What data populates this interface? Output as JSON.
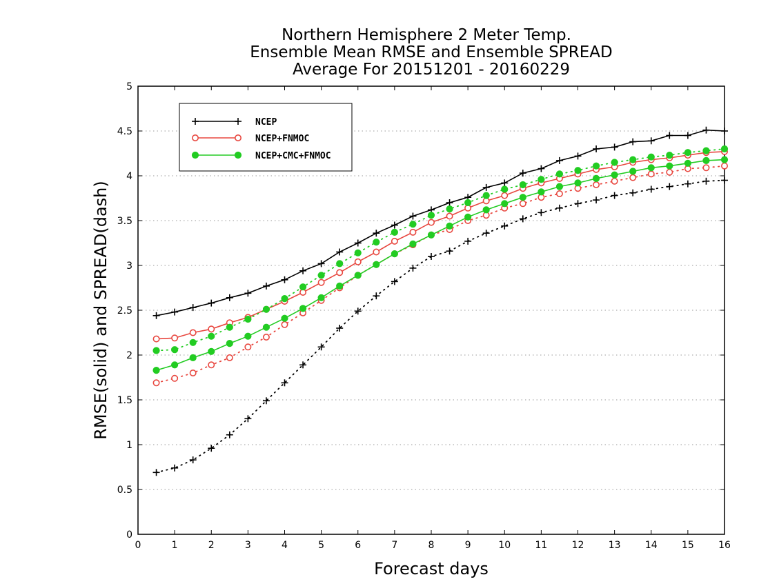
{
  "chart_data": {
    "type": "line",
    "title": [
      "Northern Hemisphere 2 Meter Temp.",
      "Ensemble Mean RMSE and Ensemble SPREAD",
      "Average For 20151201 - 20160229"
    ],
    "xlabel": "Forecast days",
    "ylabel": "RMSE(solid)  and  SPREAD(dash)",
    "xlim": [
      0,
      16
    ],
    "ylim": [
      0,
      5
    ],
    "xticks": [
      0,
      1,
      2,
      3,
      4,
      5,
      6,
      7,
      8,
      9,
      10,
      11,
      12,
      13,
      14,
      15,
      16
    ],
    "yticks": [
      0,
      0.5,
      1,
      1.5,
      2,
      2.5,
      3,
      3.5,
      4,
      4.5,
      5
    ],
    "grid": "horizontal dotted",
    "legend_position": "top-left",
    "x": [
      0.5,
      1,
      1.5,
      2,
      2.5,
      3,
      3.5,
      4,
      4.5,
      5,
      5.5,
      6,
      6.5,
      7,
      7.5,
      8,
      8.5,
      9,
      9.5,
      10,
      10.5,
      11,
      11.5,
      12,
      12.5,
      13,
      13.5,
      14,
      14.5,
      15,
      15.5,
      16
    ],
    "series": [
      {
        "name": "NCEP",
        "color": "#000000",
        "marker": "plus",
        "rmse": [
          2.44,
          2.48,
          2.53,
          2.58,
          2.64,
          2.69,
          2.77,
          2.84,
          2.94,
          3.02,
          3.15,
          3.25,
          3.36,
          3.45,
          3.55,
          3.62,
          3.7,
          3.76,
          3.87,
          3.92,
          4.03,
          4.08,
          4.17,
          4.22,
          4.3,
          4.32,
          4.38,
          4.39,
          4.45,
          4.45,
          4.51,
          4.5
        ],
        "spread": [
          0.69,
          0.74,
          0.83,
          0.96,
          1.11,
          1.29,
          1.49,
          1.69,
          1.89,
          2.09,
          2.3,
          2.49,
          2.66,
          2.82,
          2.97,
          3.1,
          3.16,
          3.27,
          3.36,
          3.44,
          3.52,
          3.59,
          3.64,
          3.69,
          3.73,
          3.78,
          3.81,
          3.85,
          3.88,
          3.91,
          3.94,
          3.95
        ]
      },
      {
        "name": "NCEP+FNMOC",
        "color": "#e8473f",
        "marker": "open-circle",
        "rmse": [
          2.18,
          2.19,
          2.25,
          2.29,
          2.36,
          2.42,
          2.51,
          2.6,
          2.7,
          2.81,
          2.92,
          3.04,
          3.15,
          3.27,
          3.37,
          3.48,
          3.55,
          3.64,
          3.72,
          3.78,
          3.86,
          3.92,
          3.97,
          4.02,
          4.07,
          4.1,
          4.15,
          4.18,
          4.2,
          4.23,
          4.26,
          4.27
        ],
        "spread": [
          1.69,
          1.74,
          1.8,
          1.89,
          1.97,
          2.09,
          2.2,
          2.34,
          2.47,
          2.61,
          2.75,
          2.89,
          3.01,
          3.13,
          3.23,
          3.34,
          3.4,
          3.5,
          3.56,
          3.64,
          3.69,
          3.76,
          3.8,
          3.86,
          3.9,
          3.94,
          3.98,
          4.02,
          4.04,
          4.08,
          4.09,
          4.11
        ]
      },
      {
        "name": "NCEP+CMC+FNMOC",
        "color": "#22cc22",
        "marker": "filled-circle",
        "rmse": [
          1.83,
          1.89,
          1.97,
          2.04,
          2.13,
          2.21,
          2.31,
          2.41,
          2.52,
          2.64,
          2.77,
          2.89,
          3.01,
          3.13,
          3.24,
          3.34,
          3.44,
          3.54,
          3.62,
          3.69,
          3.76,
          3.82,
          3.88,
          3.92,
          3.97,
          4.01,
          4.05,
          4.09,
          4.11,
          4.14,
          4.17,
          4.18
        ],
        "spread": [
          2.05,
          2.06,
          2.14,
          2.21,
          2.31,
          2.4,
          2.51,
          2.63,
          2.76,
          2.89,
          3.02,
          3.14,
          3.26,
          3.37,
          3.46,
          3.56,
          3.63,
          3.7,
          3.78,
          3.85,
          3.9,
          3.96,
          4.02,
          4.06,
          4.11,
          4.15,
          4.18,
          4.21,
          4.23,
          4.26,
          4.28,
          4.3
        ]
      }
    ]
  }
}
